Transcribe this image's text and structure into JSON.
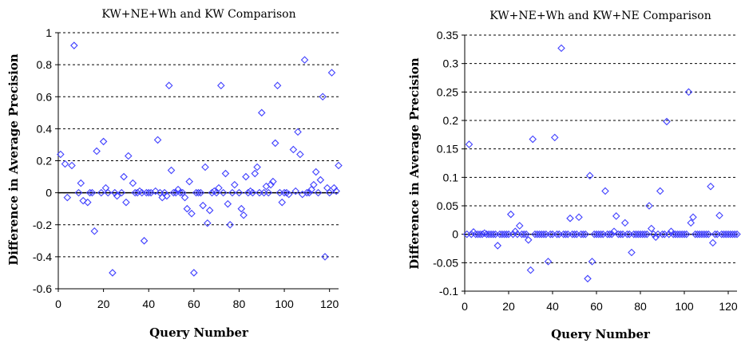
{
  "chart_data": [
    {
      "type": "scatter",
      "title": "KW+NE+Wh and KW Comparison",
      "xlabel": "Query Number",
      "ylabel": "Difference in Average Precision",
      "xlim": [
        0,
        124
      ],
      "ylim": [
        -0.6,
        1
      ],
      "x_ticks": [
        "0",
        "20",
        "40",
        "60",
        "80",
        "100",
        "120"
      ],
      "y_ticks": [
        "1",
        "0.8",
        "0.6",
        "0.4",
        "0.2",
        "0",
        "-0.2",
        "-0.4",
        "-0.6"
      ],
      "grid": "horizontal dashed",
      "marker": "diamond",
      "marker_color": "#4040ff",
      "points": [
        [
          1,
          0.24
        ],
        [
          3,
          0.18
        ],
        [
          4,
          -0.03
        ],
        [
          6,
          0.17
        ],
        [
          7,
          0.92
        ],
        [
          9,
          0
        ],
        [
          10,
          0.06
        ],
        [
          11,
          -0.05
        ],
        [
          13,
          -0.06
        ],
        [
          14,
          0
        ],
        [
          15,
          0
        ],
        [
          16,
          -0.24
        ],
        [
          17,
          0.26
        ],
        [
          19,
          0
        ],
        [
          20,
          0.32
        ],
        [
          21,
          0.03
        ],
        [
          22,
          0
        ],
        [
          24,
          -0.5
        ],
        [
          25,
          0
        ],
        [
          26,
          -0.02
        ],
        [
          28,
          0
        ],
        [
          29,
          0.1
        ],
        [
          30,
          -0.06
        ],
        [
          31,
          0.23
        ],
        [
          33,
          0.06
        ],
        [
          34,
          0
        ],
        [
          35,
          0
        ],
        [
          36,
          0.01
        ],
        [
          37,
          0
        ],
        [
          38,
          -0.3
        ],
        [
          39,
          0
        ],
        [
          40,
          0
        ],
        [
          41,
          0
        ],
        [
          43,
          0.01
        ],
        [
          44,
          0.33
        ],
        [
          45,
          0
        ],
        [
          46,
          -0.03
        ],
        [
          47,
          0
        ],
        [
          48,
          -0.02
        ],
        [
          49,
          0.67
        ],
        [
          50,
          0.14
        ],
        [
          51,
          0
        ],
        [
          52,
          0
        ],
        [
          53,
          0.02
        ],
        [
          54,
          0
        ],
        [
          55,
          0
        ],
        [
          56,
          -0.03
        ],
        [
          57,
          -0.1
        ],
        [
          58,
          0.07
        ],
        [
          59,
          -0.13
        ],
        [
          60,
          -0.5
        ],
        [
          61,
          0
        ],
        [
          62,
          0
        ],
        [
          63,
          0
        ],
        [
          64,
          -0.08
        ],
        [
          65,
          0.16
        ],
        [
          66,
          -0.19
        ],
        [
          67,
          -0.11
        ],
        [
          68,
          0
        ],
        [
          69,
          0.01
        ],
        [
          70,
          0
        ],
        [
          71,
          0.03
        ],
        [
          72,
          0.67
        ],
        [
          73,
          0
        ],
        [
          74,
          0.12
        ],
        [
          75,
          -0.07
        ],
        [
          76,
          -0.2
        ],
        [
          77,
          0
        ],
        [
          78,
          0.05
        ],
        [
          80,
          0
        ],
        [
          81,
          -0.1
        ],
        [
          82,
          -0.14
        ],
        [
          83,
          0.1
        ],
        [
          84,
          0
        ],
        [
          85,
          0.01
        ],
        [
          86,
          0
        ],
        [
          87,
          0.12
        ],
        [
          88,
          0.16
        ],
        [
          89,
          0
        ],
        [
          90,
          0.5
        ],
        [
          91,
          0
        ],
        [
          92,
          0.04
        ],
        [
          93,
          0
        ],
        [
          94,
          0.05
        ],
        [
          95,
          0.07
        ],
        [
          96,
          0.31
        ],
        [
          97,
          0.67
        ],
        [
          98,
          0
        ],
        [
          99,
          -0.06
        ],
        [
          100,
          0
        ],
        [
          101,
          0
        ],
        [
          102,
          -0.01
        ],
        [
          104,
          0.27
        ],
        [
          105,
          0.01
        ],
        [
          106,
          0.38
        ],
        [
          107,
          0.24
        ],
        [
          108,
          -0.01
        ],
        [
          109,
          0.83
        ],
        [
          110,
          0
        ],
        [
          111,
          0
        ],
        [
          112,
          0.02
        ],
        [
          113,
          0.05
        ],
        [
          114,
          0.13
        ],
        [
          115,
          0
        ],
        [
          116,
          0.08
        ],
        [
          117,
          0.6
        ],
        [
          118,
          -0.4
        ],
        [
          119,
          0.03
        ],
        [
          120,
          0
        ],
        [
          121,
          0.75
        ],
        [
          122,
          0.03
        ],
        [
          123,
          0.01
        ],
        [
          124,
          0.17
        ]
      ]
    },
    {
      "type": "scatter",
      "title": "KW+NE+Wh and KW+NE Comparison",
      "xlabel": "Query Number",
      "ylabel": "Difference in Average Precision",
      "xlim": [
        0,
        124
      ],
      "ylim": [
        -0.1,
        0.35
      ],
      "x_ticks": [
        "0",
        "20",
        "40",
        "60",
        "80",
        "100",
        "120"
      ],
      "y_ticks": [
        "0.35",
        "0.3",
        "0.25",
        "0.2",
        "0.15",
        "0.1",
        "0.05",
        "0",
        "-0.05",
        "-0.1"
      ],
      "grid": "horizontal dashed",
      "marker": "diamond",
      "marker_color": "#4040ff",
      "points": [
        [
          1,
          0
        ],
        [
          2,
          0.158
        ],
        [
          3,
          0
        ],
        [
          4,
          0.004
        ],
        [
          5,
          0
        ],
        [
          6,
          0
        ],
        [
          7,
          0
        ],
        [
          8,
          0
        ],
        [
          9,
          0.002
        ],
        [
          10,
          0
        ],
        [
          11,
          0
        ],
        [
          12,
          0
        ],
        [
          13,
          0
        ],
        [
          14,
          0
        ],
        [
          15,
          -0.02
        ],
        [
          16,
          0
        ],
        [
          17,
          0
        ],
        [
          18,
          0
        ],
        [
          19,
          0
        ],
        [
          20,
          0
        ],
        [
          21,
          0.035
        ],
        [
          22,
          0
        ],
        [
          23,
          0.005
        ],
        [
          24,
          0
        ],
        [
          25,
          0.015
        ],
        [
          26,
          0
        ],
        [
          27,
          0
        ],
        [
          28,
          0
        ],
        [
          29,
          -0.01
        ],
        [
          30,
          -0.063
        ],
        [
          31,
          0.167
        ],
        [
          32,
          0
        ],
        [
          33,
          0
        ],
        [
          34,
          0
        ],
        [
          35,
          0
        ],
        [
          36,
          0
        ],
        [
          37,
          0
        ],
        [
          38,
          -0.048
        ],
        [
          39,
          0
        ],
        [
          40,
          0
        ],
        [
          41,
          0.17
        ],
        [
          42,
          0
        ],
        [
          43,
          0
        ],
        [
          44,
          0.327
        ],
        [
          45,
          0
        ],
        [
          46,
          0
        ],
        [
          47,
          0
        ],
        [
          48,
          0.028
        ],
        [
          49,
          0
        ],
        [
          50,
          0
        ],
        [
          51,
          0
        ],
        [
          52,
          0.03
        ],
        [
          53,
          0
        ],
        [
          54,
          0
        ],
        [
          55,
          0
        ],
        [
          56,
          -0.078
        ],
        [
          57,
          0.103
        ],
        [
          58,
          -0.048
        ],
        [
          59,
          0
        ],
        [
          60,
          0
        ],
        [
          61,
          0
        ],
        [
          62,
          0
        ],
        [
          63,
          0
        ],
        [
          64,
          0.076
        ],
        [
          65,
          0
        ],
        [
          66,
          0
        ],
        [
          67,
          0
        ],
        [
          68,
          0.005
        ],
        [
          69,
          0.032
        ],
        [
          70,
          0
        ],
        [
          71,
          0
        ],
        [
          72,
          0
        ],
        [
          73,
          0.02
        ],
        [
          74,
          0
        ],
        [
          75,
          0
        ],
        [
          76,
          -0.032
        ],
        [
          77,
          0
        ],
        [
          78,
          0
        ],
        [
          79,
          0
        ],
        [
          80,
          0
        ],
        [
          81,
          0
        ],
        [
          82,
          0
        ],
        [
          83,
          0
        ],
        [
          84,
          0.05
        ],
        [
          85,
          0.01
        ],
        [
          86,
          0
        ],
        [
          87,
          -0.005
        ],
        [
          88,
          0
        ],
        [
          89,
          0.076
        ],
        [
          90,
          0
        ],
        [
          91,
          0
        ],
        [
          92,
          0.198
        ],
        [
          93,
          0
        ],
        [
          94,
          0.005
        ],
        [
          95,
          0
        ],
        [
          96,
          0
        ],
        [
          97,
          0
        ],
        [
          98,
          0
        ],
        [
          99,
          0
        ],
        [
          100,
          0
        ],
        [
          101,
          0
        ],
        [
          102,
          0.25
        ],
        [
          103,
          0.02
        ],
        [
          104,
          0.03
        ],
        [
          105,
          0
        ],
        [
          106,
          0
        ],
        [
          107,
          0
        ],
        [
          108,
          0
        ],
        [
          109,
          0
        ],
        [
          110,
          0
        ],
        [
          111,
          0
        ],
        [
          112,
          0.084
        ],
        [
          113,
          -0.015
        ],
        [
          114,
          0
        ],
        [
          115,
          0
        ],
        [
          116,
          0.033
        ],
        [
          117,
          0
        ],
        [
          118,
          0
        ],
        [
          119,
          0
        ],
        [
          120,
          0
        ],
        [
          121,
          0
        ],
        [
          122,
          0
        ],
        [
          123,
          0
        ],
        [
          124,
          0
        ]
      ]
    }
  ]
}
